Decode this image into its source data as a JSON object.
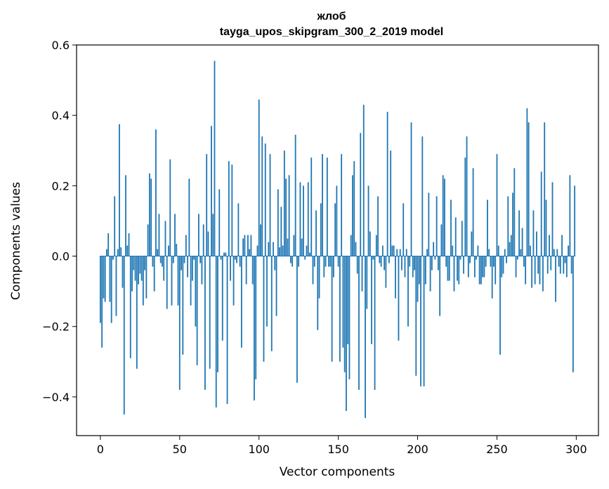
{
  "chart_data": {
    "type": "bar",
    "title": "жлоб",
    "subtitle": "tayga_upos_skipgram_300_2_2019 model",
    "xlabel": "Vector components",
    "ylabel": "Components values",
    "xlim": [
      -15,
      314
    ],
    "ylim": [
      -0.51,
      0.6
    ],
    "xticks": [
      0,
      50,
      100,
      150,
      200,
      250,
      300
    ],
    "xtick_labels": [
      "0",
      "50",
      "100",
      "150",
      "200",
      "250",
      "300"
    ],
    "yticks": [
      -0.4,
      -0.2,
      0.0,
      0.2,
      0.4,
      0.6
    ],
    "ytick_labels": [
      "−0.4",
      "−0.2",
      "0.0",
      "0.2",
      "0.4",
      "0.6"
    ],
    "grid": false,
    "bar_color": "#1f77b4",
    "values": [
      -0.19,
      -0.26,
      -0.12,
      -0.13,
      0.02,
      0.065,
      -0.13,
      -0.19,
      -0.01,
      0.17,
      -0.17,
      0.02,
      0.375,
      0.025,
      -0.09,
      -0.45,
      0.23,
      0.03,
      0.065,
      -0.29,
      -0.1,
      -0.04,
      -0.07,
      -0.32,
      -0.08,
      -0.05,
      -0.07,
      -0.14,
      -0.04,
      -0.12,
      0.09,
      0.235,
      0.22,
      -0.03,
      -0.1,
      0.36,
      0.02,
      0.12,
      -0.02,
      -0.03,
      -0.07,
      0.1,
      -0.15,
      0.03,
      0.275,
      -0.14,
      -0.02,
      0.12,
      0.035,
      -0.14,
      -0.38,
      -0.04,
      -0.28,
      -0.02,
      0.06,
      -0.06,
      0.22,
      -0.14,
      -0.07,
      -0.01,
      -0.2,
      -0.31,
      0.12,
      -0.02,
      -0.08,
      0.09,
      -0.38,
      0.29,
      0.07,
      -0.32,
      0.37,
      0.12,
      0.555,
      -0.43,
      -0.33,
      0.19,
      -0.01,
      -0.24,
      0.01,
      0.01,
      -0.42,
      0.27,
      -0.07,
      0.26,
      -0.14,
      -0.01,
      -0.02,
      0.15,
      -0.03,
      -0.26,
      0.05,
      0.06,
      -0.08,
      0.06,
      0.02,
      0.06,
      -0.08,
      -0.41,
      -0.35,
      0.03,
      0.445,
      0.09,
      0.34,
      -0.3,
      0.32,
      -0.2,
      0.04,
      0.29,
      -0.27,
      0.04,
      -0.04,
      -0.17,
      0.19,
      0.025,
      0.14,
      0.03,
      0.3,
      0.22,
      0.05,
      0.23,
      -0.02,
      -0.03,
      0.06,
      0.345,
      -0.36,
      -0.03,
      0.21,
      0.05,
      0.2,
      -0.01,
      0.03,
      0.21,
      0.01,
      0.28,
      -0.08,
      -0.03,
      0.13,
      -0.21,
      -0.12,
      0.15,
      0.29,
      -0.06,
      -0.03,
      0.28,
      -0.03,
      -0.03,
      -0.3,
      -0.06,
      0.15,
      0.2,
      -0.03,
      -0.3,
      0.29,
      -0.26,
      -0.33,
      -0.44,
      -0.25,
      -0.35,
      0.06,
      0.23,
      0.27,
      0.04,
      -0.05,
      -0.38,
      0.35,
      -0.1,
      0.43,
      -0.46,
      -0.15,
      0.2,
      0.07,
      -0.25,
      -0.01,
      -0.38,
      0.06,
      0.17,
      -0.02,
      -0.03,
      0.03,
      -0.04,
      -0.09,
      0.41,
      -0.02,
      0.3,
      0.03,
      0.03,
      -0.12,
      0.02,
      -0.24,
      0.02,
      -0.04,
      0.15,
      -0.06,
      0.02,
      -0.2,
      -0.03,
      0.38,
      -0.06,
      -0.04,
      -0.34,
      -0.13,
      -0.08,
      -0.37,
      0.34,
      -0.37,
      -0.08,
      0.02,
      0.18,
      -0.1,
      -0.04,
      0.04,
      -0.01,
      0.17,
      -0.04,
      -0.17,
      0.09,
      0.23,
      0.22,
      -0.03,
      -0.07,
      -0.07,
      0.16,
      0.03,
      -0.1,
      0.11,
      -0.07,
      -0.08,
      -0.01,
      0.1,
      -0.05,
      0.28,
      0.34,
      -0.06,
      -0.02,
      0.07,
      0.25,
      -0.06,
      -0.01,
      0.03,
      -0.08,
      -0.08,
      -0.06,
      -0.06,
      -0.03,
      0.16,
      0.02,
      -0.03,
      -0.12,
      -0.03,
      -0.08,
      0.29,
      0.03,
      -0.28,
      -0.06,
      -0.05,
      0.02,
      -0.02,
      0.17,
      0.04,
      0.06,
      0.18,
      0.25,
      -0.06,
      -0.01,
      0.13,
      0.02,
      0.08,
      -0.03,
      -0.08,
      0.42,
      0.38,
      0.03,
      -0.09,
      0.13,
      -0.08,
      0.07,
      -0.05,
      -0.08,
      0.24,
      -0.1,
      0.38,
      0.16,
      -0.05,
      0.06,
      -0.04,
      0.21,
      0.02,
      -0.13,
      0.02,
      -0.03,
      -0.05,
      0.06,
      -0.05,
      -0.02,
      -0.06,
      0.03,
      0.23,
      -0.05,
      -0.33,
      0.2
    ]
  }
}
